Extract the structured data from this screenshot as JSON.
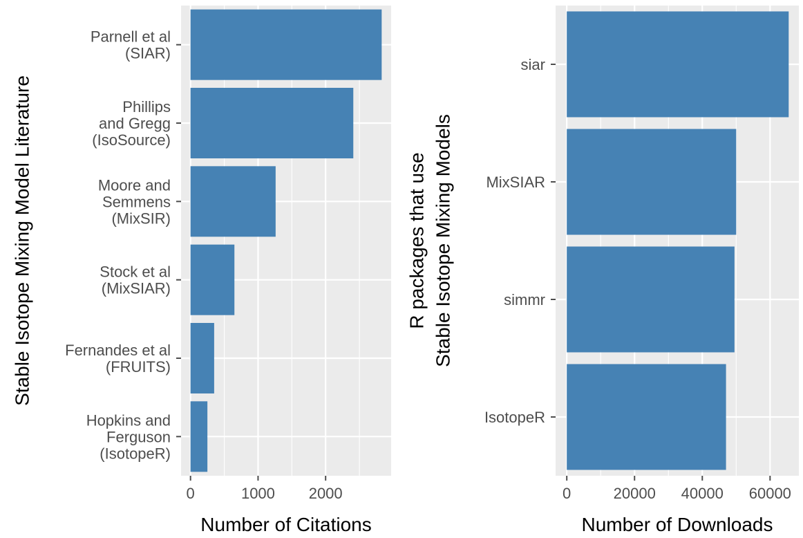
{
  "colors": {
    "bar": "#4682b4",
    "panel": "#ebebeb",
    "grid": "#ffffff",
    "tick": "#4d4d4d",
    "text": "#000000"
  },
  "chart_data": [
    {
      "type": "bar",
      "orientation": "horizontal",
      "categories": [
        [
          "Hopkins and",
          "Ferguson",
          "(IsotopeR)"
        ],
        [
          "Fernandes et al",
          "(FRUITS)"
        ],
        [
          "Stock et al",
          "(MixSIAR)"
        ],
        [
          "Moore and",
          "Semmens",
          "(MixSIR)"
        ],
        [
          "Phillips",
          "and Gregg",
          "(IsoSource)"
        ],
        [
          "Parnell et al",
          "(SIAR)"
        ]
      ],
      "values": [
        250,
        350,
        650,
        1260,
        2410,
        2830
      ],
      "xlabel": "Number of Citations",
      "ylabel": [
        "Stable Isotope Mixing Model Literature"
      ],
      "xticks": [
        0,
        1000,
        2000
      ],
      "xtick_labels": [
        "0",
        "1000",
        "2000"
      ],
      "xlim": [
        -140,
        2970
      ],
      "grid": true
    },
    {
      "type": "bar",
      "orientation": "horizontal",
      "categories": [
        [
          "IsotopeR"
        ],
        [
          "simmr"
        ],
        [
          "MixSIAR"
        ],
        [
          "siar"
        ]
      ],
      "values": [
        47000,
        49500,
        50000,
        65500
      ],
      "xlabel": "Number of Downloads",
      "ylabel": [
        "R packages that use",
        "Stable Isotope Mixing Models"
      ],
      "xticks": [
        0,
        20000,
        40000,
        60000
      ],
      "xtick_labels": [
        "0",
        "20000",
        "40000",
        "60000"
      ],
      "xlim": [
        -3300,
        68500
      ],
      "grid": true
    }
  ]
}
